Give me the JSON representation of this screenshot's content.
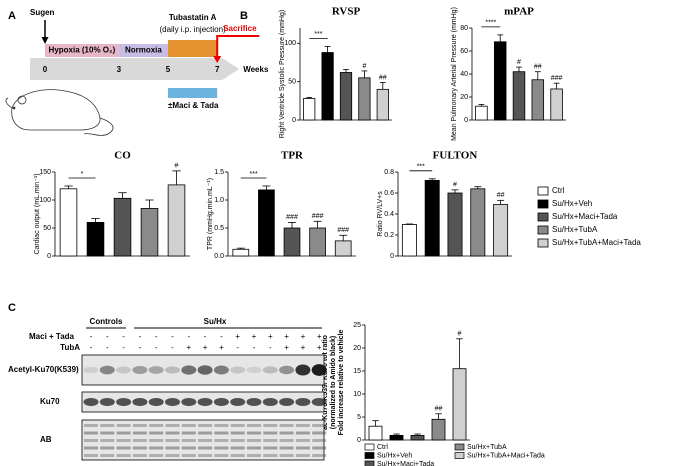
{
  "panels": [
    "A",
    "B",
    "C"
  ],
  "timeline": {
    "sugen": "Sugen",
    "hypoxia": "Hypoxia (10% O₂)",
    "normoxia": "Normoxia",
    "treatment": "Tubastatin A",
    "treatment_note": "(daily i.p. injection)",
    "sacrifice": "Sacrifice",
    "week_ticks": [
      0,
      3,
      5,
      7
    ],
    "unit": "Weeks",
    "co_treatment": "±Maci & Tada"
  },
  "legend": {
    "names": [
      "Ctrl",
      "Su/Hx+Veh",
      "Su/Hx+Maci+Tada",
      "Su/Hx+TubA",
      "Su/Hx+TubA+Maci+Tada"
    ],
    "colors": [
      "#ffffff",
      "#000000",
      "#555555",
      "#8a8a8a",
      "#d0d0d0"
    ]
  },
  "chart_data": [
    {
      "type": "bar",
      "title": "RVSP",
      "y_label": "Right Ventricle Systolic Pressure (mmHg)",
      "values": [
        28,
        88,
        62,
        55,
        40
      ],
      "errors": [
        1.5,
        8,
        4,
        9,
        9
      ],
      "annotations": [
        null,
        null,
        null,
        "#",
        "##"
      ],
      "bracket_label": "***",
      "ylim": [
        0,
        120
      ],
      "yticks": [
        0,
        50,
        100
      ]
    },
    {
      "type": "bar",
      "title": "mPAP",
      "y_label": "Mean Pulmonary Arterial Pressure (mmHg)",
      "values": [
        12,
        68,
        42,
        35,
        27
      ],
      "errors": [
        1.5,
        6,
        4,
        7,
        5
      ],
      "annotations": [
        null,
        null,
        "#",
        "##",
        "###"
      ],
      "bracket_label": "****",
      "ylim": [
        0,
        80
      ],
      "yticks": [
        0,
        20,
        40,
        60,
        80
      ]
    },
    {
      "type": "bar",
      "title": "CO",
      "y_label": "Cardiac output (mL.min⁻¹)",
      "values": [
        120,
        60,
        103,
        85,
        127
      ],
      "errors": [
        5,
        7,
        10,
        15,
        25
      ],
      "annotations": [
        null,
        null,
        null,
        null,
        "#"
      ],
      "bracket_label": "*",
      "ylim": [
        0,
        150
      ],
      "yticks": [
        0,
        50,
        100,
        150
      ]
    },
    {
      "type": "bar",
      "title": "TPR",
      "y_label": "TPR (mmHg.min.mL⁻¹)",
      "values": [
        0.12,
        1.18,
        0.5,
        0.5,
        0.27
      ],
      "errors": [
        0.02,
        0.07,
        0.1,
        0.12,
        0.1
      ],
      "annotations": [
        null,
        null,
        "###",
        "###",
        "###"
      ],
      "bracket_label": "***",
      "ylim": [
        0,
        1.5
      ],
      "yticks": [
        {
          "value": 0,
          "label": "0.0"
        },
        0.5,
        {
          "value": 1,
          "label": "1.0"
        },
        1.5
      ]
    },
    {
      "type": "bar",
      "title": "FULTON",
      "y_label": "Ratio RV/LV+s",
      "values": [
        0.3,
        0.72,
        0.6,
        0.64,
        0.49
      ],
      "errors": [
        0.005,
        0.015,
        0.03,
        0.02,
        0.04
      ],
      "annotations": [
        null,
        null,
        "#",
        null,
        "##"
      ],
      "bracket_label": "***",
      "ylim": [
        0,
        0.8
      ],
      "yticks": [
        0,
        0.2,
        0.4,
        0.6,
        0.8
      ]
    },
    {
      "type": "bar",
      "y_label_lines": [
        "ac-Ku70 K539/ Ku70 tot ratio",
        "(normalized to Amido black)",
        "Fold increase relative to vehicle"
      ],
      "values": [
        3,
        1,
        1,
        4.5,
        15.5
      ],
      "errors": [
        1.2,
        0.3,
        0.3,
        1.2,
        6.5
      ],
      "annotations": [
        null,
        null,
        null,
        "##",
        "#"
      ],
      "ylim": [
        0,
        25
      ],
      "yticks": [
        0,
        5,
        10,
        15,
        20,
        25
      ]
    }
  ],
  "blot": {
    "groups": [
      "Controls",
      "Su/Hx"
    ],
    "treatments": [
      {
        "label": "Maci + Tada",
        "signs": [
          "-",
          "-",
          "-",
          "-",
          "-",
          "-",
          "-",
          "-",
          "-",
          "+",
          "+",
          "+",
          "+",
          "+",
          "+"
        ]
      },
      {
        "label": "TubA",
        "signs": [
          "-",
          "-",
          "-",
          "-",
          "-",
          "-",
          "+",
          "+",
          "+",
          "-",
          "-",
          "-",
          "+",
          "+",
          "+"
        ]
      }
    ],
    "rows": [
      "Acetyl-Ku70(K539)",
      "Ku70",
      "AB"
    ]
  }
}
